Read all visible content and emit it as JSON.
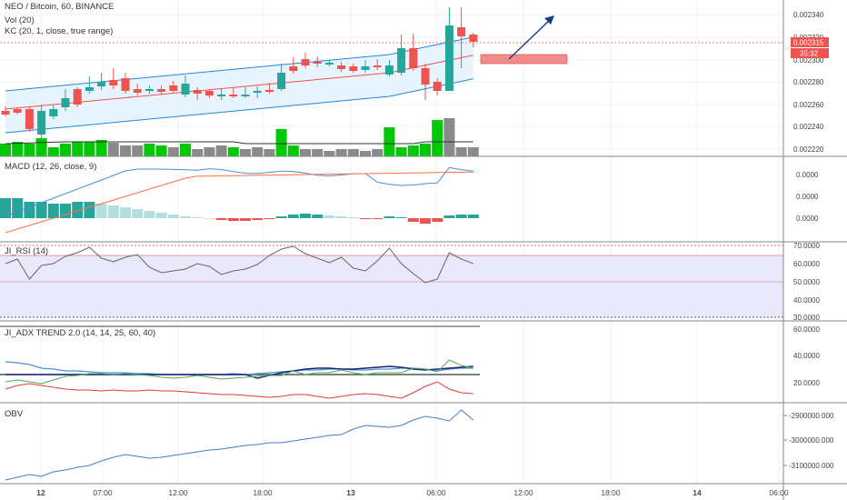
{
  "price_pane": {
    "symbol_line": "NEO / Bitcoin, 60, BINANCE",
    "vol_label": "Vol (20)",
    "kc_label": "KC (20, 1, close, true range)",
    "price_ticks": [
      "0.002340",
      "0.002320",
      "0.002300",
      "0.002280",
      "0.002260",
      "0.002240",
      "0.002220"
    ],
    "current_price": "0.002315",
    "countdown": "35:32"
  },
  "macd_pane": {
    "label": "MACD (12, 26, close, 9)",
    "ticks": [
      "0.0000",
      "0.0000",
      "0.0000"
    ]
  },
  "rsi_pane": {
    "label": "JI_RSI (14)",
    "ticks": [
      "70.0000",
      "60.0000",
      "50.0000",
      "40.0000",
      "30.0000"
    ]
  },
  "adx_pane": {
    "label": "JI_ADX TREND 2.0 (14, 14, 25, 60, 40)",
    "ticks": [
      "60.0000",
      "40.0000",
      "20.0000"
    ]
  },
  "obv_pane": {
    "label": "OBV",
    "ticks": [
      "-2900000.000",
      "-3000000.000",
      "-3100000.000"
    ]
  },
  "time_axis": {
    "labels": [
      "12",
      "07:00",
      "12:00",
      "18:00",
      "13",
      "06:00",
      "12:00",
      "18:00",
      "14",
      "06:00"
    ]
  },
  "colors": {
    "up": "#26a69a",
    "down": "#ef5350",
    "vol_up": "#00c805",
    "vol_down": "#8a8a8a",
    "kc_band": "#e3f2fd",
    "kc_line": "#1e88e5",
    "macd_line": "#4a90d9",
    "signal_line": "#ff7043",
    "rsi_band": "#e8e8ff",
    "adx_green": "#4caf50",
    "adx_red": "#e53935",
    "adx_navy": "#1a237e",
    "obv_line": "#4a7bc8",
    "arrow": "#1a3a8a"
  }
}
